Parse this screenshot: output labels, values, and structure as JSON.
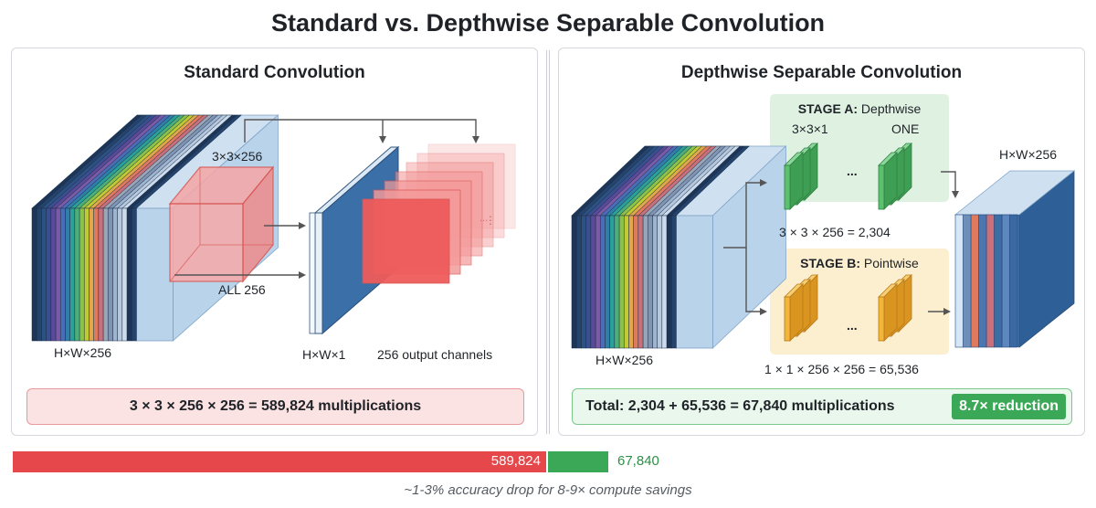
{
  "title": "Standard vs. Depthwise Separable Convolution",
  "standard": {
    "heading": "Standard Convolution",
    "input_label": "H×W×256",
    "kernel_label": "3×3×256",
    "kernel_note": "ALL 256",
    "single_output_label": "H×W×1",
    "output_channels_label": "256 output channels",
    "stack_ellipsis": "...",
    "formula": "3 × 3 × 256 × 256 = 589,824 multiplications"
  },
  "depthwise": {
    "heading": "Depthwise Separable Convolution",
    "input_label": "H×W×256",
    "output_label": "H×W×256",
    "stage_a": {
      "title_bold": "STAGE A:",
      "title_rest": " Depthwise",
      "kernel_label": "3×3×1",
      "count_label": "ONE",
      "ellipsis": "...",
      "formula": "3 × 3 × 256 = 2,304"
    },
    "stage_b": {
      "title_bold": "STAGE B:",
      "title_rest": " Pointwise",
      "ellipsis": "...",
      "formula": "1 × 1 × 256 × 256 = 65,536"
    },
    "total": "Total: 2,304 + 65,536  = 67,840 multiplications",
    "reduction_badge": "8.7× reduction"
  },
  "comparison": {
    "standard_value": "589,824",
    "depthwise_value": "67,840",
    "standard_ops": 589824,
    "depthwise_ops": 67840,
    "standard_color": "#e5474a",
    "depthwise_color": "#3aa856",
    "footnote": "~1-3% accuracy drop for 8-9× compute savings"
  }
}
